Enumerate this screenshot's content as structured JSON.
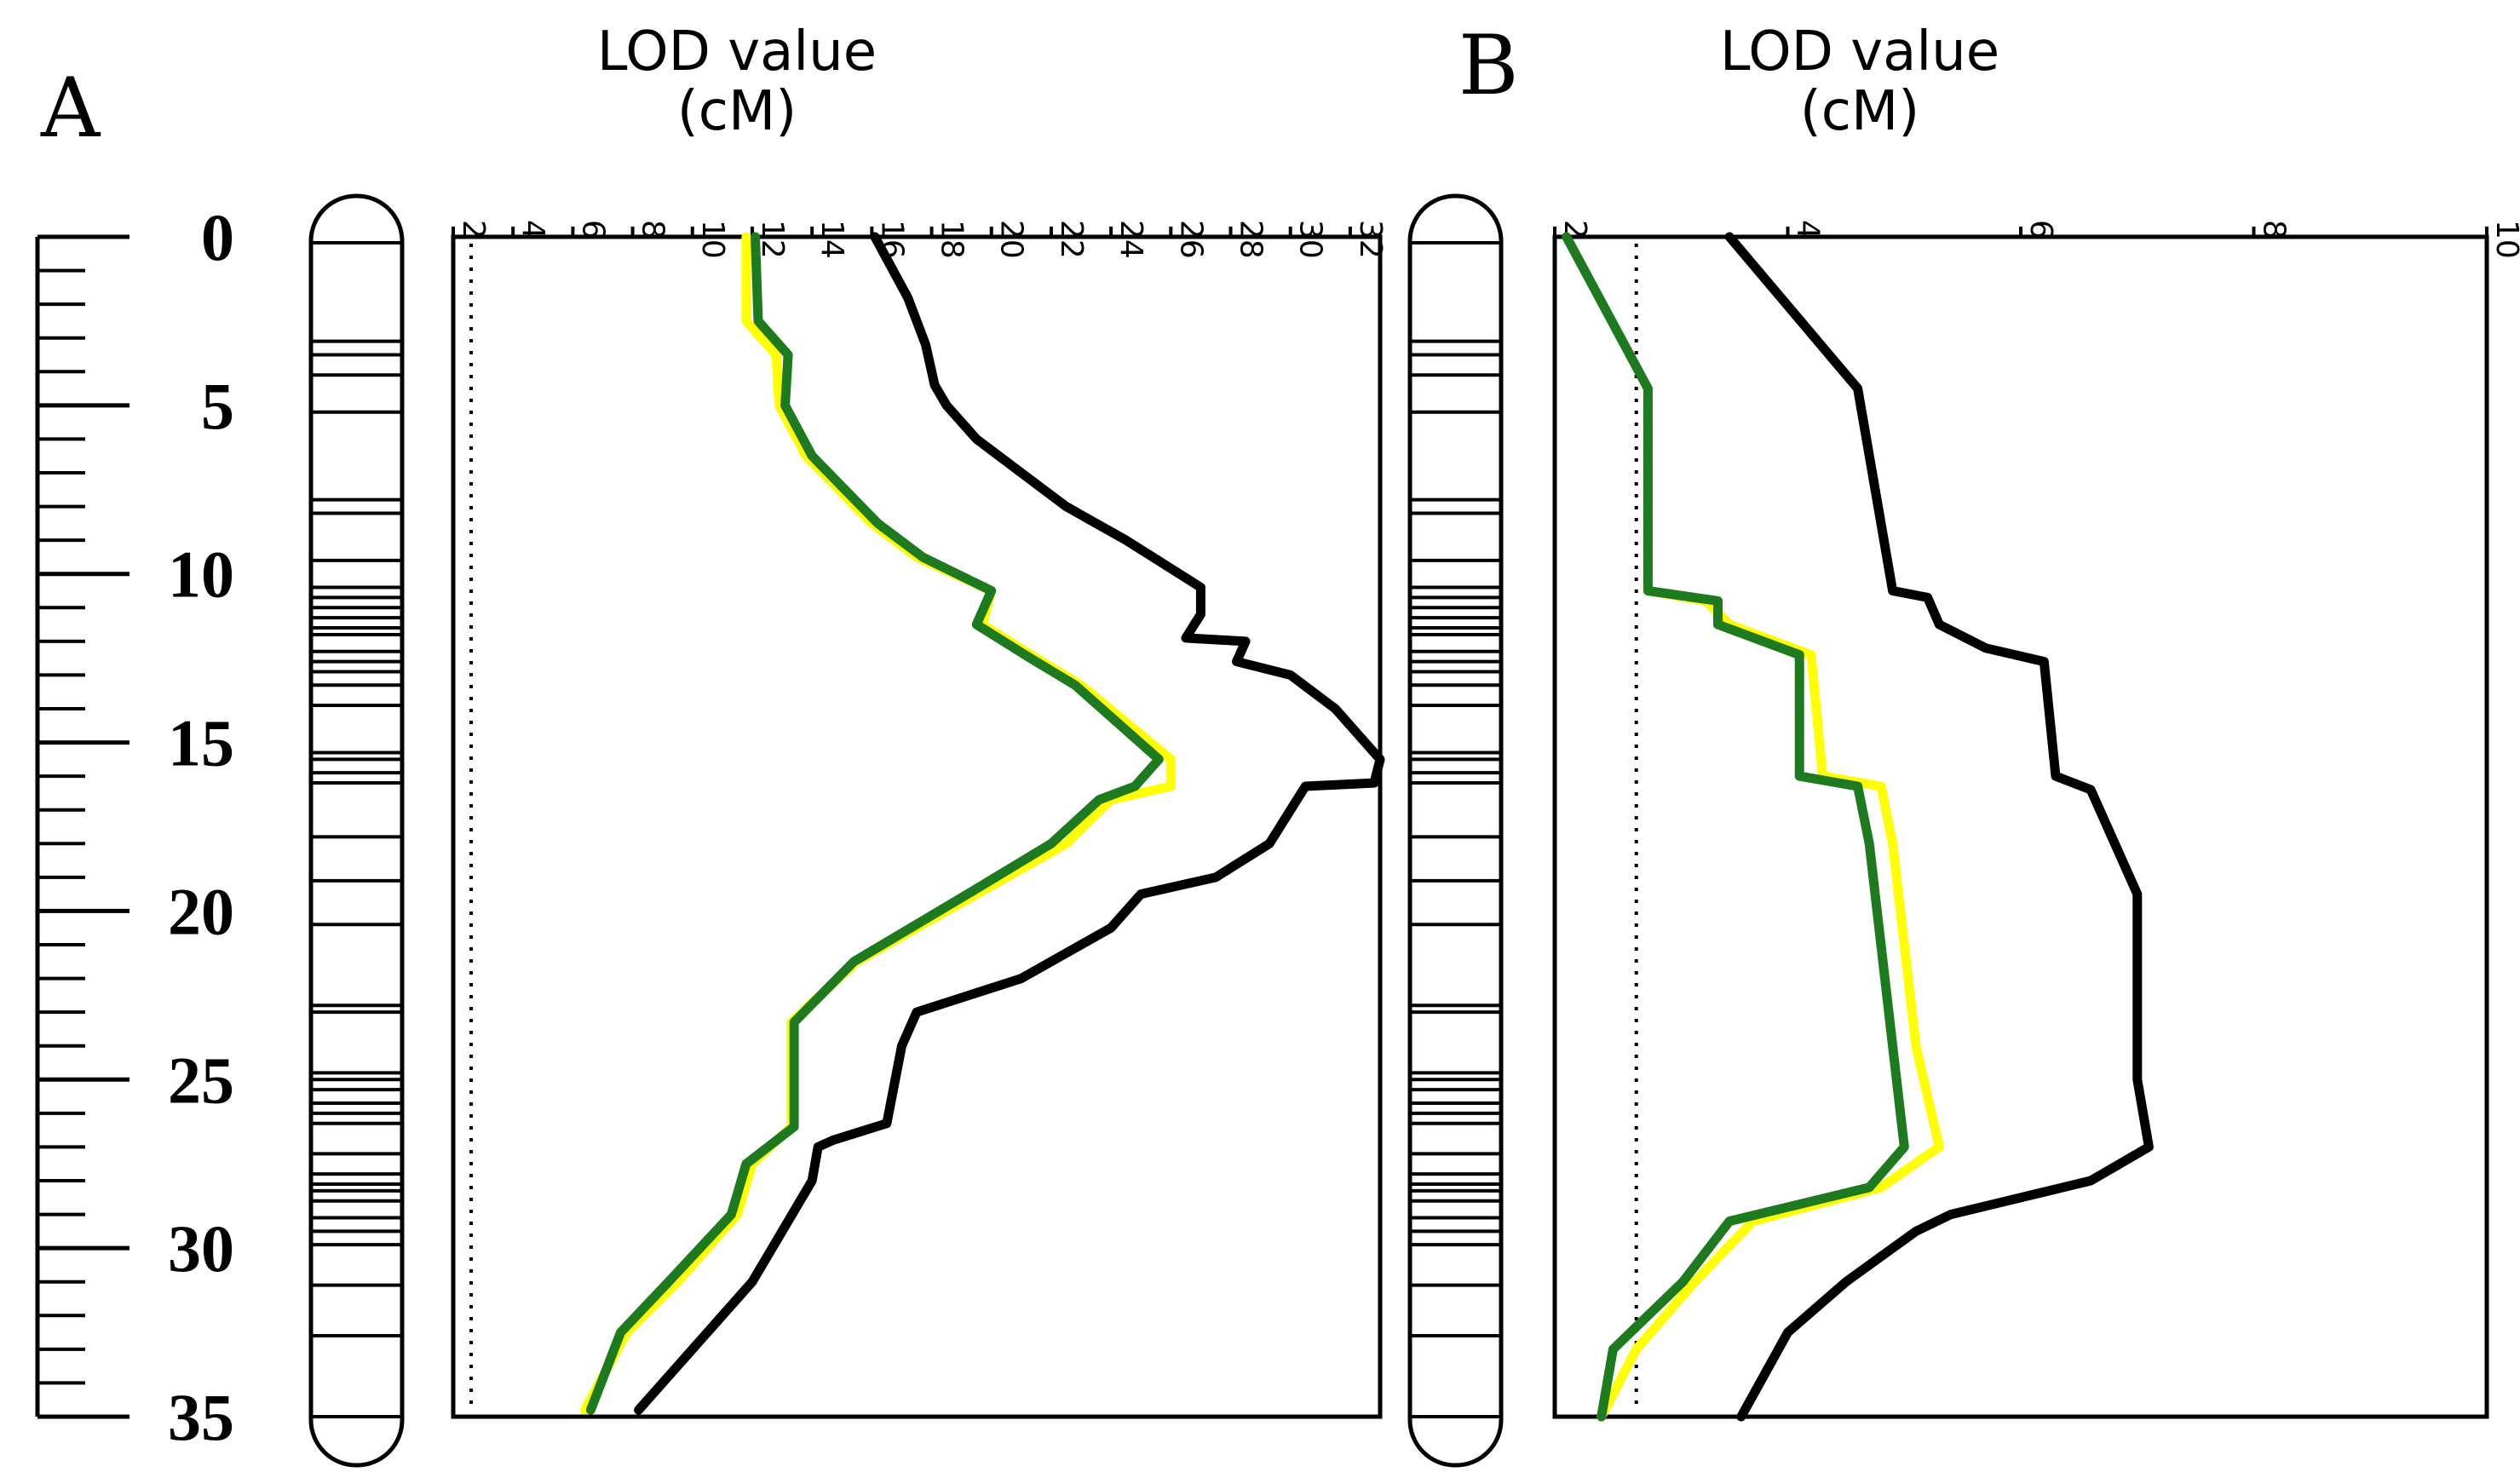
{
  "panels": {
    "a": {
      "letter": "A",
      "title_line1": "LOD value",
      "title_line2": "(cM)"
    },
    "b": {
      "letter": "B",
      "title_line1": "LOD value",
      "title_line2": "(cM)"
    }
  },
  "colors": {
    "series_black": "#000000",
    "series_green": "#1e7a1e",
    "series_yellow": "#ffff00",
    "threshold": "#000000"
  },
  "map_scale": {
    "ticks": [
      "0",
      "5",
      "10",
      "15",
      "20",
      "25",
      "30",
      "35"
    ],
    "range": [
      0,
      35
    ],
    "minor_step": 1
  },
  "linkage_map_markers_cM": [
    3.1,
    3.5,
    4.1,
    5.2,
    7.8,
    8.2,
    9.6,
    10.4,
    10.7,
    11.0,
    11.3,
    11.6,
    11.8,
    12.3,
    12.6,
    12.9,
    13.3,
    13.9,
    15.3,
    15.5,
    15.9,
    16.2,
    17.8,
    19.1,
    20.4,
    22.8,
    23.0,
    24.8,
    25.0,
    25.3,
    25.7,
    26.0,
    26.3,
    27.2,
    27.8,
    28.1,
    28.3,
    28.6,
    29.1,
    29.5,
    29.9,
    31.1,
    32.6
  ],
  "chart_data": [
    {
      "type": "line",
      "orientation": "vertical",
      "title": "LOD value (cM)",
      "xlabel": "LOD value (cM)",
      "xlim": [
        2,
        33
      ],
      "xticks": [
        "2",
        "4",
        "6",
        "8",
        "10",
        "12",
        "14",
        "16",
        "18",
        "20",
        "22",
        "24",
        "26",
        "28",
        "30",
        "32"
      ],
      "ylim": [
        0,
        35
      ],
      "threshold_lod": 2.6,
      "series": [
        {
          "color_key": "series_black",
          "points": [
            [
              16.1,
              0
            ],
            [
              17.2,
              1.8
            ],
            [
              17.8,
              3.2
            ],
            [
              18.1,
              4.4
            ],
            [
              18.5,
              5.0
            ],
            [
              19.5,
              6.0
            ],
            [
              21.0,
              7.0
            ],
            [
              22.5,
              8.0
            ],
            [
              24.5,
              9.0
            ],
            [
              27.0,
              10.4
            ],
            [
              27.0,
              11.2
            ],
            [
              26.5,
              11.9
            ],
            [
              28.5,
              12.0
            ],
            [
              28.2,
              12.6
            ],
            [
              30.0,
              13.0
            ],
            [
              31.5,
              14.0
            ],
            [
              33.0,
              15.5
            ],
            [
              32.8,
              16.2
            ],
            [
              30.5,
              16.3
            ],
            [
              29.3,
              18.0
            ],
            [
              27.5,
              19.0
            ],
            [
              25.0,
              19.5
            ],
            [
              24.0,
              20.5
            ],
            [
              21.0,
              22.0
            ],
            [
              17.5,
              23.0
            ],
            [
              17.0,
              24.0
            ],
            [
              16.5,
              26.3
            ],
            [
              14.7,
              26.8
            ],
            [
              14.2,
              27.0
            ],
            [
              14.0,
              28.0
            ],
            [
              12.0,
              31.0
            ],
            [
              10.5,
              32.5
            ],
            [
              8.2,
              34.8
            ]
          ]
        },
        {
          "color_key": "series_yellow",
          "points": [
            [
              11.8,
              0
            ],
            [
              11.8,
              2.5
            ],
            [
              12.8,
              3.5
            ],
            [
              12.9,
              5.0
            ],
            [
              13.8,
              6.5
            ],
            [
              16.0,
              8.5
            ],
            [
              17.5,
              9.5
            ],
            [
              20.0,
              10.5
            ],
            [
              19.7,
              11.5
            ],
            [
              21.5,
              12.5
            ],
            [
              23.0,
              13.3
            ],
            [
              26.0,
              15.5
            ],
            [
              26.0,
              16.3
            ],
            [
              24.0,
              16.7
            ],
            [
              22.5,
              18.0
            ],
            [
              19.5,
              19.5
            ],
            [
              15.5,
              21.5
            ],
            [
              13.3,
              23.3
            ],
            [
              13.3,
              26.4
            ],
            [
              12.0,
              27.5
            ],
            [
              11.5,
              29.0
            ],
            [
              9.5,
              31.0
            ],
            [
              7.8,
              32.5
            ],
            [
              6.4,
              34.8
            ]
          ]
        },
        {
          "color_key": "series_green",
          "points": [
            [
              12.1,
              0
            ],
            [
              12.2,
              2.5
            ],
            [
              13.2,
              3.5
            ],
            [
              13.1,
              5.0
            ],
            [
              14.0,
              6.5
            ],
            [
              16.2,
              8.5
            ],
            [
              17.7,
              9.5
            ],
            [
              20.0,
              10.5
            ],
            [
              19.5,
              11.5
            ],
            [
              21.3,
              12.5
            ],
            [
              22.8,
              13.3
            ],
            [
              25.6,
              15.5
            ],
            [
              24.8,
              16.3
            ],
            [
              23.6,
              16.7
            ],
            [
              22.0,
              18.0
            ],
            [
              19.2,
              19.5
            ],
            [
              15.4,
              21.5
            ],
            [
              13.4,
              23.3
            ],
            [
              13.4,
              26.4
            ],
            [
              11.8,
              27.5
            ],
            [
              11.3,
              29.0
            ],
            [
              9.2,
              31.0
            ],
            [
              7.6,
              32.5
            ],
            [
              6.6,
              34.8
            ]
          ]
        }
      ]
    },
    {
      "type": "line",
      "orientation": "vertical",
      "title": "LOD value (cM)",
      "xlabel": "LOD value (cM)",
      "xlim": [
        2,
        10
      ],
      "xticks": [
        "2",
        "4",
        "6",
        "8",
        "10"
      ],
      "ylim": [
        0,
        35
      ],
      "threshold_lod": 2.7,
      "series": [
        {
          "color_key": "series_black",
          "points": [
            [
              3.5,
              0
            ],
            [
              4.6,
              4.5
            ],
            [
              4.9,
              10.5
            ],
            [
              5.2,
              10.7
            ],
            [
              5.3,
              11.5
            ],
            [
              5.7,
              12.2
            ],
            [
              6.2,
              12.6
            ],
            [
              6.3,
              16.0
            ],
            [
              6.6,
              16.4
            ],
            [
              7.0,
              19.5
            ],
            [
              7.0,
              25.0
            ],
            [
              7.1,
              27.0
            ],
            [
              6.6,
              28.0
            ],
            [
              5.4,
              29.0
            ],
            [
              5.1,
              29.5
            ],
            [
              4.5,
              31.0
            ],
            [
              4.0,
              32.5
            ],
            [
              3.6,
              35
            ]
          ]
        },
        {
          "color_key": "series_yellow",
          "points": [
            [
              2.8,
              4.5
            ],
            [
              2.8,
              10.5
            ],
            [
              3.3,
              10.8
            ],
            [
              3.5,
              11.5
            ],
            [
              4.2,
              12.4
            ],
            [
              4.3,
              16.0
            ],
            [
              4.8,
              16.3
            ],
            [
              4.9,
              18.0
            ],
            [
              5.1,
              24.0
            ],
            [
              5.3,
              27.0
            ],
            [
              4.8,
              28.2
            ],
            [
              3.7,
              29.2
            ],
            [
              3.2,
              31.0
            ],
            [
              2.7,
              33.0
            ],
            [
              2.4,
              35
            ]
          ]
        },
        {
          "color_key": "series_green",
          "points": [
            [
              2.1,
              0
            ],
            [
              2.8,
              4.5
            ],
            [
              2.8,
              10.5
            ],
            [
              3.4,
              10.8
            ],
            [
              3.4,
              11.5
            ],
            [
              4.1,
              12.4
            ],
            [
              4.1,
              16.0
            ],
            [
              4.6,
              16.3
            ],
            [
              4.7,
              18.0
            ],
            [
              4.9,
              24.0
            ],
            [
              5.0,
              27.0
            ],
            [
              4.7,
              28.2
            ],
            [
              3.5,
              29.2
            ],
            [
              3.1,
              31.0
            ],
            [
              2.5,
              33.0
            ],
            [
              2.4,
              35
            ]
          ]
        }
      ]
    }
  ]
}
